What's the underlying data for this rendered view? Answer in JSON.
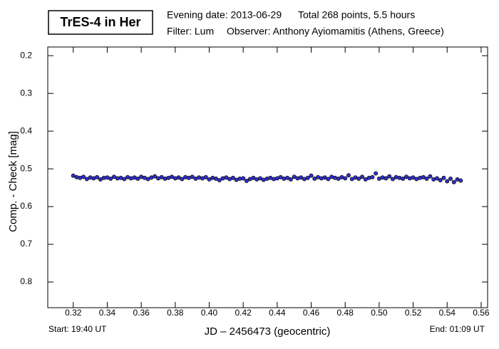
{
  "chart_data": {
    "type": "scatter",
    "title": "TrES-4 in Her",
    "annotations": [
      "Evening date: 2013-06-29",
      "Total 268 points, 5.5 hours",
      "Filter: Lum",
      "Observer: Anthony Ayiomamitis (Athens, Greece)",
      "Start: 19:40 UT",
      "End: 01:09 UT"
    ],
    "xlabel": "JD – 2456473  (geocentric)",
    "ylabel": "Comp. - Check [mag]",
    "xlim": [
      0.305,
      0.5638
    ],
    "ylim": [
      0.177,
      0.868
    ],
    "y_inverted": true,
    "xticks": [
      0.32,
      0.34,
      0.36,
      0.38,
      {
        "value": 0.4,
        "label": "0.40"
      },
      0.42,
      0.44,
      0.46,
      0.48,
      {
        "value": 0.5,
        "label": "0.50"
      },
      0.52,
      0.54,
      0.56
    ],
    "yticks": [
      0.2,
      0.3,
      0.4,
      0.5,
      0.6,
      0.7,
      0.8
    ],
    "series": [
      {
        "color": "#2f2fd0",
        "x": [
          0.32,
          0.322,
          0.324,
          0.326,
          0.328,
          0.33,
          0.332,
          0.334,
          0.336,
          0.338,
          0.34,
          0.342,
          0.344,
          0.346,
          0.348,
          0.35,
          0.352,
          0.354,
          0.356,
          0.358,
          0.36,
          0.362,
          0.364,
          0.366,
          0.368,
          0.37,
          0.372,
          0.374,
          0.376,
          0.378,
          0.38,
          0.382,
          0.384,
          0.386,
          0.388,
          0.39,
          0.392,
          0.394,
          0.396,
          0.398,
          0.4,
          0.402,
          0.404,
          0.406,
          0.408,
          0.41,
          0.412,
          0.414,
          0.416,
          0.418,
          0.42,
          0.422,
          0.424,
          0.426,
          0.428,
          0.43,
          0.432,
          0.434,
          0.436,
          0.438,
          0.44,
          0.442,
          0.444,
          0.446,
          0.448,
          0.45,
          0.452,
          0.454,
          0.456,
          0.458,
          0.46,
          0.462,
          0.464,
          0.466,
          0.468,
          0.47,
          0.472,
          0.474,
          0.476,
          0.478,
          0.48,
          0.482,
          0.484,
          0.486,
          0.488,
          0.49,
          0.492,
          0.494,
          0.496,
          0.498,
          0.5,
          0.502,
          0.504,
          0.506,
          0.508,
          0.51,
          0.512,
          0.514,
          0.516,
          0.518,
          0.52,
          0.522,
          0.524,
          0.526,
          0.528,
          0.53,
          0.532,
          0.534,
          0.536,
          0.538,
          0.54,
          0.542,
          0.544,
          0.546,
          0.548
        ],
        "values": [
          0.518,
          0.522,
          0.524,
          0.521,
          0.527,
          0.523,
          0.525,
          0.522,
          0.528,
          0.524,
          0.523,
          0.526,
          0.521,
          0.525,
          0.524,
          0.527,
          0.522,
          0.525,
          0.523,
          0.526,
          0.521,
          0.524,
          0.527,
          0.523,
          0.52,
          0.525,
          0.522,
          0.526,
          0.524,
          0.521,
          0.525,
          0.523,
          0.527,
          0.522,
          0.524,
          0.521,
          0.526,
          0.523,
          0.525,
          0.522,
          0.528,
          0.524,
          0.526,
          0.53,
          0.525,
          0.523,
          0.527,
          0.524,
          0.529,
          0.526,
          0.525,
          0.532,
          0.527,
          0.524,
          0.528,
          0.525,
          0.529,
          0.526,
          0.524,
          0.527,
          0.525,
          0.522,
          0.526,
          0.524,
          0.528,
          0.521,
          0.525,
          0.523,
          0.527,
          0.524,
          0.518,
          0.526,
          0.522,
          0.525,
          0.523,
          0.527,
          0.521,
          0.524,
          0.526,
          0.522,
          0.525,
          0.517,
          0.527,
          0.523,
          0.526,
          0.521,
          0.528,
          0.524,
          0.522,
          0.512,
          0.526,
          0.523,
          0.525,
          0.52,
          0.527,
          0.522,
          0.524,
          0.526,
          0.521,
          0.525,
          0.523,
          0.527,
          0.524,
          0.522,
          0.526,
          0.52,
          0.528,
          0.525,
          0.53,
          0.524,
          0.533,
          0.526,
          0.535,
          0.528,
          0.531
        ]
      }
    ]
  }
}
